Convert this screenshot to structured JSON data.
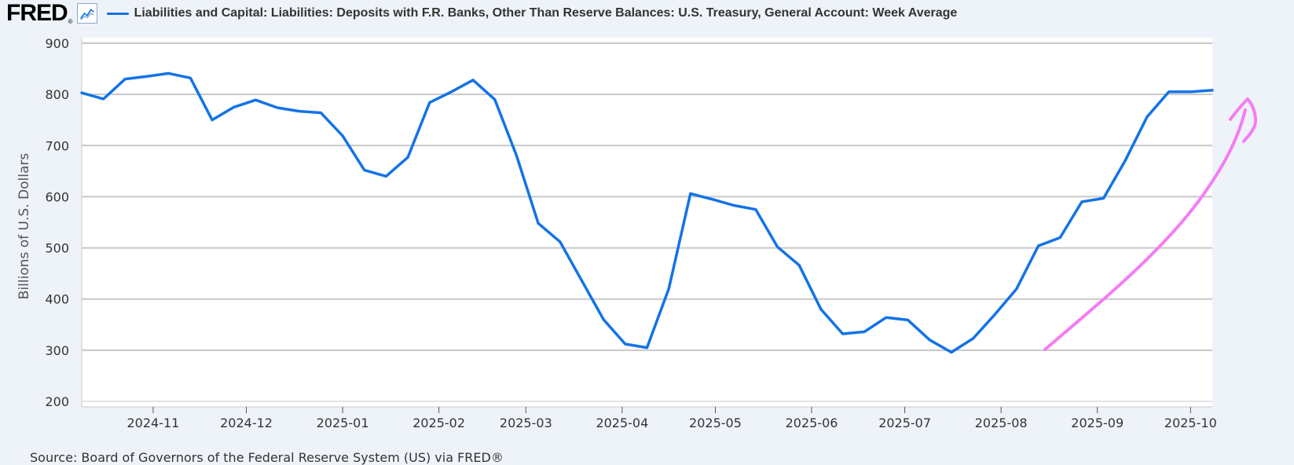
{
  "header": {
    "logo_text": "FRED",
    "logo_mark": "®",
    "graph_icon": "line-chart-icon",
    "series_title": "Liabilities and Capital: Liabilities: Deposits with F.R. Banks, Other Than Reserve Balances: U.S. Treasury, General Account: Week Average"
  },
  "source": "Source: Board of Governors of the Federal Reserve System (US) via FRED®",
  "colors": {
    "series": "#1473e6",
    "annotation": "#f47cf4",
    "grid": "#c8c8c8",
    "plot_bg": "#ffffff",
    "page_bg": "#eef3f9"
  },
  "chart_data": {
    "type": "line",
    "ylabel": "Billions of U.S. Dollars",
    "ylim": [
      200,
      900
    ],
    "yticks": [
      200,
      300,
      400,
      500,
      600,
      700,
      800,
      900
    ],
    "xlim": [
      "2024-10-09",
      "2025-10-08"
    ],
    "xticks": [
      {
        "date": "2024-11-01",
        "label": "2024-11"
      },
      {
        "date": "2024-12-01",
        "label": "2024-12"
      },
      {
        "date": "2025-01-01",
        "label": "2025-01"
      },
      {
        "date": "2025-02-01",
        "label": "2025-02"
      },
      {
        "date": "2025-03-01",
        "label": "2025-03"
      },
      {
        "date": "2025-04-01",
        "label": "2025-04"
      },
      {
        "date": "2025-05-01",
        "label": "2025-05"
      },
      {
        "date": "2025-06-01",
        "label": "2025-06"
      },
      {
        "date": "2025-07-01",
        "label": "2025-07"
      },
      {
        "date": "2025-08-01",
        "label": "2025-08"
      },
      {
        "date": "2025-09-01",
        "label": "2025-09"
      },
      {
        "date": "2025-10-01",
        "label": "2025-10"
      }
    ],
    "grid": true,
    "legend": "top-left",
    "series": [
      {
        "x": [
          "2024-10-09",
          "2024-10-16",
          "2024-10-23",
          "2024-10-30",
          "2024-11-06",
          "2024-11-13",
          "2024-11-20",
          "2024-11-27",
          "2024-12-04",
          "2024-12-11",
          "2024-12-18",
          "2024-12-25",
          "2025-01-01",
          "2025-01-08",
          "2025-01-15",
          "2025-01-22",
          "2025-01-29",
          "2025-02-05",
          "2025-02-12",
          "2025-02-19",
          "2025-02-26",
          "2025-03-05",
          "2025-03-12",
          "2025-03-19",
          "2025-03-26",
          "2025-04-02",
          "2025-04-09",
          "2025-04-16",
          "2025-04-23",
          "2025-04-30",
          "2025-05-07",
          "2025-05-14",
          "2025-05-21",
          "2025-05-28",
          "2025-06-04",
          "2025-06-11",
          "2025-06-18",
          "2025-06-25",
          "2025-07-02",
          "2025-07-09",
          "2025-07-16",
          "2025-07-23",
          "2025-07-30",
          "2025-08-06",
          "2025-08-13",
          "2025-08-20",
          "2025-08-27",
          "2025-09-03",
          "2025-09-10",
          "2025-09-17",
          "2025-09-24",
          "2025-10-01",
          "2025-10-08"
        ],
        "values": [
          803,
          791,
          830,
          835,
          841,
          832,
          750,
          775,
          789,
          774,
          767,
          764,
          719,
          652,
          640,
          677,
          784,
          805,
          828,
          790,
          680,
          548,
          512,
          436,
          360,
          312,
          305,
          420,
          606,
          595,
          583,
          575,
          502,
          466,
          380,
          332,
          336,
          364,
          359,
          320,
          296,
          323,
          370,
          420,
          504,
          520,
          590,
          597,
          671,
          756,
          805,
          805,
          808
        ]
      }
    ]
  }
}
